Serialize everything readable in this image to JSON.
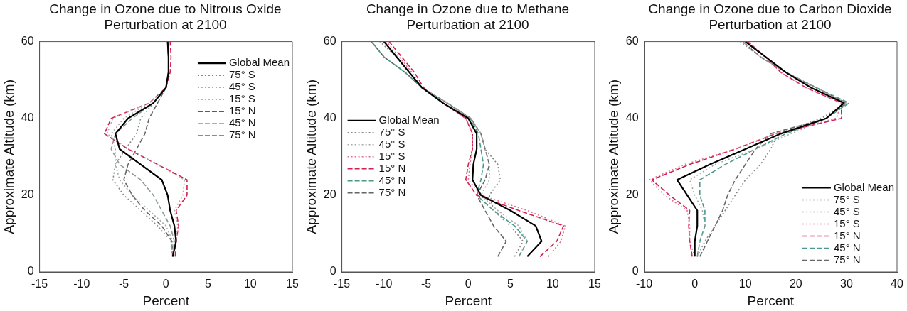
{
  "chart_data": [
    {
      "type": "line",
      "title": "Change in Ozone due to Nitrous Oxide Perturbation at 2100",
      "xlabel": "Percent",
      "ylabel": "Approximate Altitude (km)",
      "xlim": [
        -15,
        15
      ],
      "ylim": [
        0,
        60
      ],
      "xticks": [
        -15,
        -10,
        -5,
        0,
        5,
        10,
        15
      ],
      "yticks": [
        0,
        20,
        40,
        60
      ],
      "grid": false,
      "legend": "top right",
      "series": [
        {
          "name": "Global Mean",
          "color": "#000000",
          "line_style": "solid",
          "x": [
            0.8,
            1.2,
            1.0,
            0.5,
            0.2,
            -0.5,
            -3,
            -5.5,
            -6,
            -4.5,
            -1.5,
            0,
            0.3,
            0.3,
            0.2
          ],
          "values": [
            4,
            8,
            12,
            16,
            20,
            24,
            28,
            32,
            36,
            40,
            44,
            48,
            52,
            56,
            60
          ]
        },
        {
          "name": "75° S",
          "color": "#888888",
          "line_style": "dotted",
          "x": [
            0.8,
            0.6,
            -1,
            -3,
            -5,
            -6.3,
            -6,
            -4.8,
            -3.5,
            -3,
            -1.5,
            0,
            0.3,
            0.3,
            0.2
          ],
          "values": [
            4,
            8,
            12,
            16,
            20,
            24,
            28,
            32,
            36,
            40,
            44,
            48,
            52,
            56,
            60
          ]
        },
        {
          "name": "45° S",
          "color": "#aaaaaa",
          "line_style": "dotted",
          "x": [
            0.8,
            0.8,
            0,
            -2,
            -4,
            -5.5,
            -6,
            -6,
            -6.5,
            -5,
            -2,
            0,
            0.3,
            0.3,
            0.2
          ],
          "values": [
            4,
            8,
            12,
            16,
            20,
            24,
            28,
            32,
            36,
            40,
            44,
            48,
            52,
            56,
            60
          ]
        },
        {
          "name": "15° S",
          "color": "#b0b0b0",
          "line_style": "dotted",
          "x": [
            0.8,
            1.2,
            1.4,
            1.0,
            2.0,
            2.2,
            -1,
            -4.5,
            -7,
            -6.3,
            -2,
            0,
            0.3,
            0.3,
            0.2
          ],
          "values": [
            4,
            8,
            12,
            16,
            20,
            24,
            28,
            32,
            36,
            40,
            44,
            48,
            52,
            56,
            60
          ]
        },
        {
          "name": "15° N",
          "color": "#d42050",
          "line_style": "dashed",
          "x": [
            1.1,
            1.2,
            1.5,
            1.2,
            2.5,
            2.5,
            -1,
            -4.5,
            -7.3,
            -6.5,
            -2,
            0,
            0.5,
            0.6,
            0.5
          ],
          "values": [
            4,
            8,
            12,
            16,
            20,
            24,
            28,
            32,
            36,
            40,
            44,
            48,
            52,
            56,
            60
          ]
        },
        {
          "name": "45° N",
          "color": "#8a9a94",
          "line_style": "dashed",
          "x": [
            0.8,
            1.0,
            0.5,
            -0.5,
            -1.5,
            -3,
            -5.5,
            -6.5,
            -6,
            -4,
            -1.5,
            0,
            0.3,
            0.3,
            0.2
          ],
          "values": [
            4,
            8,
            12,
            16,
            20,
            24,
            28,
            32,
            36,
            40,
            44,
            48,
            52,
            56,
            60
          ]
        },
        {
          "name": "75° N",
          "color": "#666666",
          "line_style": "dashed",
          "x": [
            0.8,
            0.7,
            -0.5,
            -2.5,
            -4,
            -5,
            -4.5,
            -3.5,
            -2.5,
            -2,
            -1,
            0,
            0.3,
            0.3,
            0.2
          ],
          "values": [
            4,
            8,
            12,
            16,
            20,
            24,
            28,
            32,
            36,
            40,
            44,
            48,
            52,
            56,
            60
          ]
        }
      ]
    },
    {
      "type": "line",
      "title": "Change in Ozone due to Methane Perturbation at 2100",
      "xlabel": "Percent",
      "ylabel": "Approximate Altitude (km)",
      "xlim": [
        -15,
        15
      ],
      "ylim": [
        0,
        60
      ],
      "xticks": [
        -15,
        -10,
        -5,
        0,
        5,
        10,
        15
      ],
      "yticks": [
        0,
        20,
        40,
        60
      ],
      "grid": false,
      "legend": "left",
      "series": [
        {
          "name": "Global Mean",
          "color": "#000000",
          "line_style": "solid",
          "x": [
            7,
            8.7,
            8,
            5,
            1.5,
            0.5,
            0.6,
            1,
            1,
            0,
            -3,
            -5.5,
            -7,
            -8.5,
            -10
          ],
          "values": [
            4,
            8,
            12,
            16,
            20,
            24,
            28,
            32,
            36,
            40,
            44,
            48,
            52,
            56,
            60
          ]
        },
        {
          "name": "75° S",
          "color": "#888888",
          "line_style": "dotted",
          "x": [
            5.5,
            6.5,
            5,
            3,
            2.5,
            3.8,
            3.5,
            2,
            1.5,
            0.3,
            -2.5,
            -5.5,
            -7,
            -8.5,
            -10.5
          ],
          "values": [
            4,
            8,
            12,
            16,
            20,
            24,
            28,
            32,
            36,
            40,
            44,
            48,
            52,
            56,
            60
          ]
        },
        {
          "name": "45° S",
          "color": "#aaaaaa",
          "line_style": "dotted",
          "x": [
            6,
            7,
            6,
            3.5,
            1.5,
            2.5,
            2.5,
            2,
            1.5,
            0.2,
            -2.5,
            -5.5,
            -7,
            -8.5,
            -10
          ],
          "values": [
            4,
            8,
            12,
            16,
            20,
            24,
            28,
            32,
            36,
            40,
            44,
            48,
            52,
            56,
            60
          ]
        },
        {
          "name": "15° S",
          "color": "#e0708c",
          "line_style": "dotted",
          "x": [
            9.5,
            11,
            11.5,
            7,
            1.5,
            0,
            0.2,
            0.5,
            0.5,
            -0.3,
            -3,
            -5.5,
            -6.7,
            -8.2,
            -9.7
          ],
          "values": [
            4,
            8,
            12,
            16,
            20,
            24,
            28,
            32,
            36,
            40,
            44,
            48,
            52,
            56,
            60
          ]
        },
        {
          "name": "15° N",
          "color": "#d42050",
          "line_style": "dashed",
          "x": [
            8.5,
            10.5,
            11.3,
            6,
            1,
            -0.3,
            0,
            0.5,
            0.5,
            -0.3,
            -3,
            -5.3,
            -6.4,
            -7.9,
            -9.4
          ],
          "values": [
            4,
            8,
            12,
            16,
            20,
            24,
            28,
            32,
            36,
            40,
            44,
            48,
            52,
            56,
            60
          ]
        },
        {
          "name": "45° N",
          "color": "#4a9a8a",
          "line_style": "dashed",
          "x": [
            6,
            7,
            5.5,
            3,
            1,
            1.5,
            1.8,
            1.5,
            1.2,
            0.2,
            -2.5,
            -5.5,
            -7.5,
            -10,
            -11.5
          ],
          "values": [
            4,
            8,
            12,
            16,
            20,
            24,
            28,
            32,
            36,
            40,
            44,
            48,
            52,
            56,
            60
          ]
        },
        {
          "name": "75° N",
          "color": "#666666",
          "line_style": "dashed",
          "x": [
            3.5,
            4.5,
            3,
            2,
            1,
            2,
            2.5,
            2,
            1.5,
            0.3,
            -2.5,
            -5.5,
            -7.5,
            -10,
            -11.5
          ],
          "values": [
            4,
            8,
            12,
            16,
            20,
            24,
            28,
            32,
            36,
            40,
            44,
            48,
            52,
            56,
            60
          ]
        }
      ]
    },
    {
      "type": "line",
      "title": "Change in Ozone due to Carbon Dioxide Perturbation at 2100",
      "xlabel": "Percent",
      "ylabel": "Approximate Altitude (km)",
      "xlim": [
        -10,
        40
      ],
      "ylim": [
        0,
        60
      ],
      "xticks": [
        -10,
        0,
        10,
        20,
        30,
        40
      ],
      "yticks": [
        0,
        20,
        40,
        60
      ],
      "grid": false,
      "legend": "bottom right",
      "series": [
        {
          "name": "Global Mean",
          "color": "#000000",
          "line_style": "solid",
          "x": [
            0,
            0,
            0.5,
            0.5,
            -1.5,
            -3.5,
            3,
            10,
            17,
            26,
            29.5,
            23,
            18,
            14,
            10
          ],
          "values": [
            4,
            8,
            12,
            16,
            20,
            24,
            28,
            32,
            36,
            40,
            44,
            48,
            52,
            56,
            60
          ]
        },
        {
          "name": "75° S",
          "color": "#888888",
          "line_style": "dotted",
          "x": [
            0.5,
            2,
            4,
            6,
            8,
            10,
            13,
            15,
            16.5,
            25,
            30,
            24,
            18,
            13,
            9
          ],
          "values": [
            4,
            8,
            12,
            16,
            20,
            24,
            28,
            32,
            36,
            40,
            44,
            48,
            52,
            56,
            60
          ]
        },
        {
          "name": "45° S",
          "color": "#aaaaaa",
          "line_style": "dotted",
          "x": [
            0.5,
            1,
            2,
            1.5,
            0,
            -1,
            4,
            12,
            19,
            26,
            30,
            24,
            18,
            13,
            9.5
          ],
          "values": [
            4,
            8,
            12,
            16,
            20,
            24,
            28,
            32,
            36,
            40,
            44,
            48,
            52,
            56,
            60
          ]
        },
        {
          "name": "15° S",
          "color": "#e0708c",
          "line_style": "dotted",
          "x": [
            0,
            -1,
            -1,
            -1.5,
            -6,
            -9,
            -2,
            8,
            16,
            28,
            29,
            22,
            17,
            14,
            10.5
          ],
          "values": [
            4,
            8,
            12,
            16,
            20,
            24,
            28,
            32,
            36,
            40,
            44,
            48,
            52,
            56,
            60
          ]
        },
        {
          "name": "15° N",
          "color": "#d42050",
          "line_style": "dashed",
          "x": [
            -0.5,
            -1,
            -1.2,
            -1,
            -5,
            -8.5,
            -1,
            8,
            16,
            29,
            29,
            22,
            17,
            14,
            10.5
          ],
          "values": [
            4,
            8,
            12,
            16,
            20,
            24,
            28,
            32,
            36,
            40,
            44,
            48,
            52,
            56,
            60
          ]
        },
        {
          "name": "45° N",
          "color": "#4a9a8a",
          "line_style": "dashed",
          "x": [
            0.5,
            1,
            2,
            2,
            1,
            1,
            6,
            12,
            18,
            26,
            30.5,
            24,
            18,
            14,
            10
          ],
          "values": [
            4,
            8,
            12,
            16,
            20,
            24,
            28,
            32,
            36,
            40,
            44,
            48,
            52,
            56,
            60
          ]
        },
        {
          "name": "75° N",
          "color": "#666666",
          "line_style": "dashed",
          "x": [
            1,
            2.5,
            4,
            5.5,
            6.5,
            8,
            10,
            12,
            15,
            26,
            30,
            24,
            18,
            13,
            9.5
          ],
          "values": [
            4,
            8,
            12,
            16,
            20,
            24,
            28,
            32,
            36,
            40,
            44,
            48,
            52,
            56,
            60
          ]
        }
      ]
    }
  ]
}
